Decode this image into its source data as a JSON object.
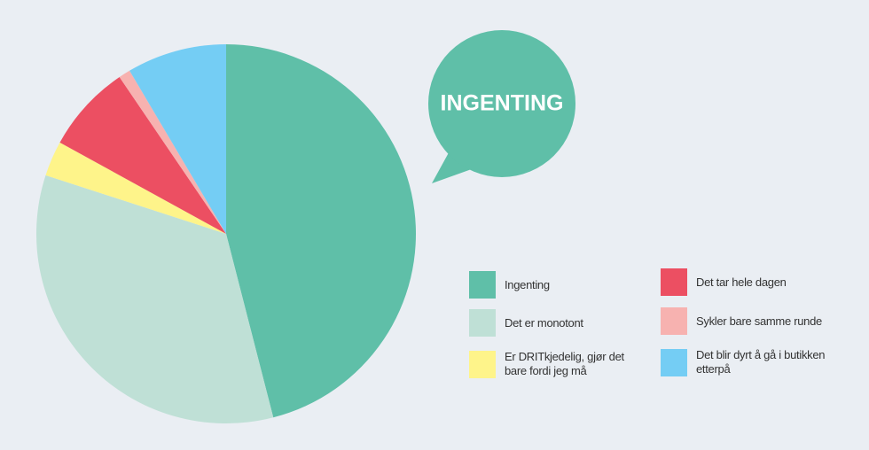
{
  "chart_data": {
    "type": "pie",
    "annotation": "INGENTING",
    "categories": [
      "Ingenting",
      "Det er monotont",
      "Er DRITkjedelig, gjør det bare fordi jeg må",
      "Det tar hele dagen",
      "Sykler bare samme runde",
      "Det blir dyrt å gå i butikken etterpå"
    ],
    "values": [
      46,
      34,
      3,
      7.5,
      1,
      8.5
    ],
    "colors": [
      "#5fbfa8",
      "#bfe0d6",
      "#fef48a",
      "#ec4f62",
      "#f7b2b0",
      "#74cdf4"
    ]
  }
}
